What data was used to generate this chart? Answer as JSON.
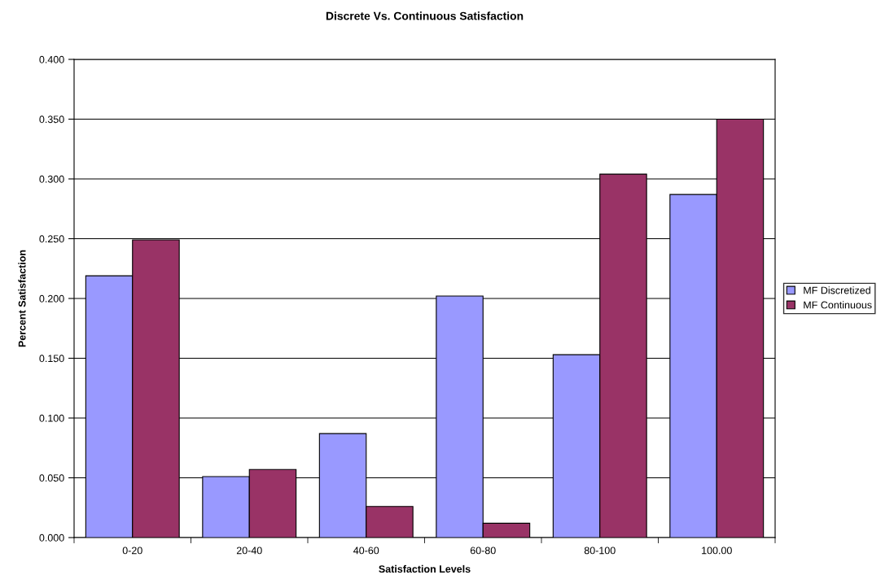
{
  "chart_data": {
    "type": "bar",
    "title": "Discrete Vs. Continuous Satisfaction",
    "xlabel": "Satisfaction Levels",
    "ylabel": "Percent Satisfaction",
    "categories": [
      "0-20",
      "20-40",
      "40-60",
      "60-80",
      "80-100",
      "100.00"
    ],
    "series": [
      {
        "name": "MF Discretized",
        "color": "#9999ff",
        "values": [
          0.219,
          0.051,
          0.087,
          0.202,
          0.153,
          0.287
        ]
      },
      {
        "name": "MF Continuous",
        "color": "#993366",
        "values": [
          0.249,
          0.057,
          0.026,
          0.012,
          0.304,
          0.35
        ]
      }
    ],
    "ylim": [
      0,
      0.4
    ],
    "yticks": [
      {
        "value": 0,
        "label": "0.000"
      },
      {
        "value": 0.05,
        "label": "0.050"
      },
      {
        "value": 0.1,
        "label": "0.100"
      },
      {
        "value": 0.15,
        "label": "0.150"
      },
      {
        "value": 0.2,
        "label": "0.200"
      },
      {
        "value": 0.25,
        "label": "0.250"
      },
      {
        "value": 0.3,
        "label": "0.300"
      },
      {
        "value": 0.35,
        "label": "0.350"
      },
      {
        "value": 0.4,
        "label": "0.400"
      }
    ],
    "grid": "y",
    "legend": "right"
  }
}
